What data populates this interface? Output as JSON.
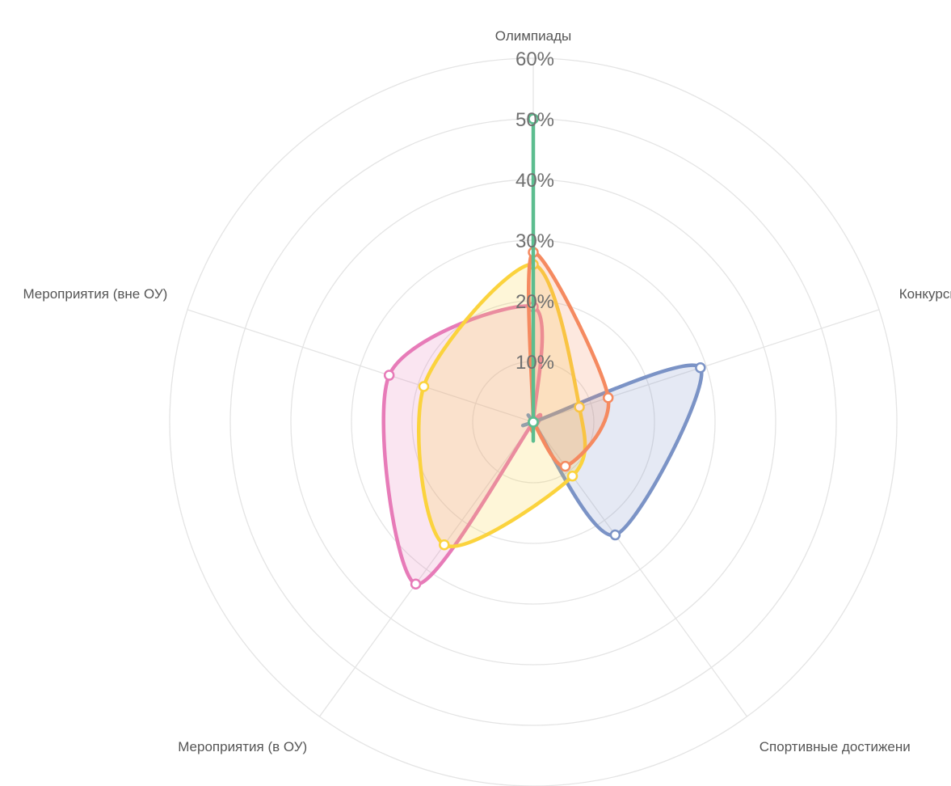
{
  "chart_data": {
    "type": "radar",
    "axes": [
      "Олимпиады",
      "Конкурсы",
      "Спортивные достижени",
      "Мероприятия (в ОУ)",
      "Мероприятия (вне ОУ)"
    ],
    "rlim": [
      0,
      60
    ],
    "ticks": [
      10,
      20,
      30,
      40,
      50,
      60
    ],
    "tick_labels": [
      "10%",
      "20%",
      "30%",
      "40%",
      "50%",
      "60%"
    ],
    "grid": true,
    "legend": "none",
    "series": [
      {
        "color": "#e77bb8",
        "values": [
          19,
          0,
          0,
          33,
          25
        ]
      },
      {
        "color": "#7b93c6",
        "values": [
          0,
          29,
          23,
          0,
          0
        ]
      },
      {
        "color": "#fbd33d",
        "values": [
          26,
          8,
          11,
          25,
          19
        ]
      },
      {
        "color": "#f58a60",
        "values": [
          28,
          13,
          9,
          0,
          0
        ]
      },
      {
        "color": "#5cbd8f",
        "values": [
          50,
          0,
          0,
          0,
          0
        ]
      }
    ]
  }
}
